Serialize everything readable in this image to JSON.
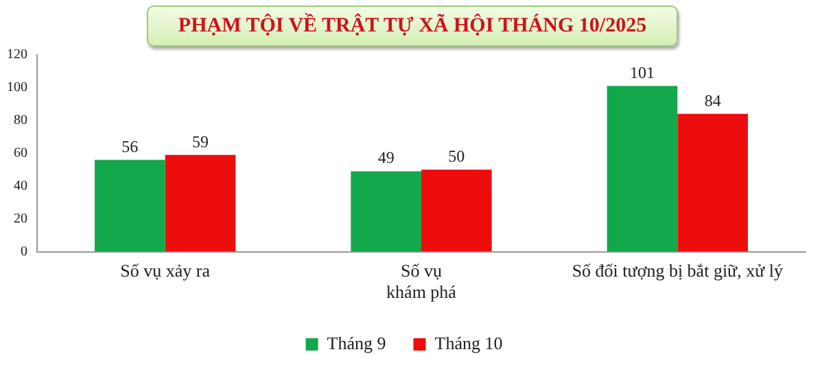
{
  "chart_data": {
    "type": "bar",
    "title": "PHẠM TỘI VỀ TRẬT TỰ XÃ HỘI THÁNG 10/2025",
    "categories": [
      "Số vụ xảy ra",
      "Số vụ\nkhám phá",
      "Số đối tượng bị bắt giữ, xử lý"
    ],
    "series": [
      {
        "name": "Tháng 9",
        "color": "#12a84b",
        "values": [
          56,
          49,
          101
        ]
      },
      {
        "name": "Tháng 10",
        "color": "#ee0d0d",
        "values": [
          59,
          50,
          84
        ]
      }
    ],
    "ylim": [
      0,
      120
    ],
    "yticks": [
      0,
      20,
      40,
      60,
      80,
      100,
      120
    ],
    "grid": false,
    "legend": "bottom",
    "data_labels": true
  }
}
